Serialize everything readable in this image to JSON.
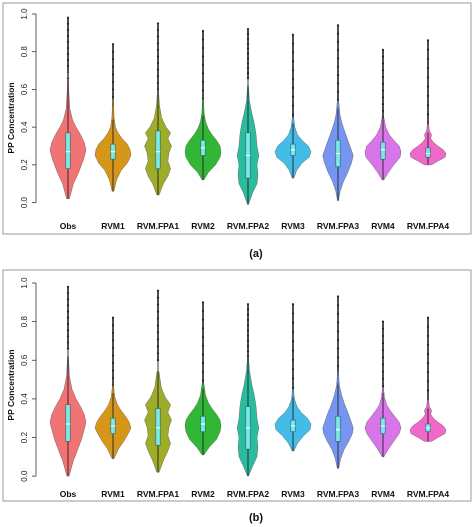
{
  "chart_data": [
    {
      "type": "violin",
      "caption": "(a)",
      "ylabel": "PP Concentration",
      "xlabel": "",
      "ylim": [
        -0.05,
        1.0
      ],
      "yticks": [
        0.0,
        0.2,
        0.4,
        0.6,
        0.8,
        1.0
      ],
      "ytick_labels": [
        "0.0",
        "0.2",
        "0.4",
        "0.6",
        "0.8",
        "1.0"
      ],
      "grid": false,
      "categories": [
        "Obs",
        "RVM1",
        "RVM.FPA1",
        "RVM2",
        "RVM.FPA2",
        "RVM3",
        "RVM.FPA3",
        "RVM4",
        "RVM.FPA4"
      ],
      "colors": [
        "#f06c6c",
        "#d4900e",
        "#9aa81e",
        "#26b32a",
        "#1fb89a",
        "#3ab8e6",
        "#6f8ff0",
        "#d56ee8",
        "#f060c8"
      ],
      "violins": [
        {
          "min": 0.02,
          "q1": 0.18,
          "median": 0.27,
          "q3": 0.37,
          "upper_whisker": 0.66,
          "outlier_max": 0.98,
          "density": [
            [
              0.02,
              0.08
            ],
            [
              0.1,
              0.3
            ],
            [
              0.15,
              0.55
            ],
            [
              0.2,
              0.75
            ],
            [
              0.24,
              0.9
            ],
            [
              0.28,
              1.0
            ],
            [
              0.32,
              0.9
            ],
            [
              0.36,
              0.7
            ],
            [
              0.4,
              0.45
            ],
            [
              0.44,
              0.25
            ],
            [
              0.5,
              0.1
            ],
            [
              0.6,
              0.04
            ],
            [
              0.7,
              0.02
            ]
          ]
        },
        {
          "min": 0.06,
          "q1": 0.23,
          "median": 0.27,
          "q3": 0.31,
          "upper_whisker": 0.44,
          "outlier_max": 0.84,
          "density": [
            [
              0.06,
              0.05
            ],
            [
              0.12,
              0.2
            ],
            [
              0.17,
              0.45
            ],
            [
              0.21,
              0.8
            ],
            [
              0.25,
              1.0
            ],
            [
              0.28,
              0.95
            ],
            [
              0.31,
              0.8
            ],
            [
              0.34,
              0.5
            ],
            [
              0.37,
              0.28
            ],
            [
              0.4,
              0.14
            ],
            [
              0.45,
              0.06
            ],
            [
              0.55,
              0.02
            ]
          ]
        },
        {
          "min": 0.04,
          "q1": 0.18,
          "median": 0.27,
          "q3": 0.38,
          "upper_whisker": 0.6,
          "outlier_max": 0.95,
          "density": [
            [
              0.04,
              0.06
            ],
            [
              0.1,
              0.3
            ],
            [
              0.14,
              0.55
            ],
            [
              0.18,
              0.7
            ],
            [
              0.22,
              0.55
            ],
            [
              0.26,
              0.6
            ],
            [
              0.3,
              0.75
            ],
            [
              0.34,
              0.55
            ],
            [
              0.37,
              0.7
            ],
            [
              0.4,
              0.45
            ],
            [
              0.45,
              0.2
            ],
            [
              0.52,
              0.08
            ],
            [
              0.6,
              0.03
            ]
          ]
        },
        {
          "min": 0.12,
          "q1": 0.25,
          "median": 0.29,
          "q3": 0.33,
          "upper_whisker": 0.46,
          "outlier_max": 0.91,
          "density": [
            [
              0.12,
              0.05
            ],
            [
              0.16,
              0.3
            ],
            [
              0.2,
              0.7
            ],
            [
              0.24,
              0.95
            ],
            [
              0.27,
              1.0
            ],
            [
              0.3,
              0.95
            ],
            [
              0.33,
              0.75
            ],
            [
              0.36,
              0.5
            ],
            [
              0.39,
              0.3
            ],
            [
              0.43,
              0.14
            ],
            [
              0.48,
              0.06
            ],
            [
              0.55,
              0.02
            ]
          ]
        },
        {
          "min": -0.01,
          "q1": 0.13,
          "median": 0.25,
          "q3": 0.37,
          "upper_whisker": 0.66,
          "outlier_max": 0.92,
          "density": [
            [
              -0.01,
              0.03
            ],
            [
              0.05,
              0.25
            ],
            [
              0.1,
              0.5
            ],
            [
              0.15,
              0.55
            ],
            [
              0.2,
              0.5
            ],
            [
              0.25,
              0.6
            ],
            [
              0.3,
              0.5
            ],
            [
              0.36,
              0.45
            ],
            [
              0.42,
              0.35
            ],
            [
              0.48,
              0.2
            ],
            [
              0.54,
              0.08
            ],
            [
              0.62,
              0.03
            ]
          ]
        },
        {
          "min": 0.13,
          "q1": 0.25,
          "median": 0.28,
          "q3": 0.31,
          "upper_whisker": 0.42,
          "outlier_max": 0.89,
          "density": [
            [
              0.13,
              0.05
            ],
            [
              0.17,
              0.2
            ],
            [
              0.21,
              0.5
            ],
            [
              0.24,
              0.9
            ],
            [
              0.27,
              1.0
            ],
            [
              0.3,
              0.85
            ],
            [
              0.33,
              0.5
            ],
            [
              0.36,
              0.25
            ],
            [
              0.4,
              0.1
            ],
            [
              0.45,
              0.04
            ]
          ]
        },
        {
          "min": 0.01,
          "q1": 0.19,
          "median": 0.26,
          "q3": 0.33,
          "upper_whisker": 0.5,
          "outlier_max": 0.94,
          "density": [
            [
              0.01,
              0.03
            ],
            [
              0.06,
              0.12
            ],
            [
              0.11,
              0.3
            ],
            [
              0.16,
              0.55
            ],
            [
              0.21,
              0.75
            ],
            [
              0.25,
              0.85
            ],
            [
              0.29,
              0.7
            ],
            [
              0.33,
              0.55
            ],
            [
              0.37,
              0.4
            ],
            [
              0.42,
              0.22
            ],
            [
              0.47,
              0.1
            ],
            [
              0.54,
              0.04
            ]
          ]
        },
        {
          "min": 0.12,
          "q1": 0.23,
          "median": 0.28,
          "q3": 0.32,
          "upper_whisker": 0.45,
          "outlier_max": 0.81,
          "density": [
            [
              0.12,
              0.05
            ],
            [
              0.16,
              0.3
            ],
            [
              0.2,
              0.6
            ],
            [
              0.24,
              0.95
            ],
            [
              0.27,
              1.0
            ],
            [
              0.3,
              0.9
            ],
            [
              0.33,
              0.6
            ],
            [
              0.36,
              0.35
            ],
            [
              0.4,
              0.15
            ],
            [
              0.45,
              0.05
            ]
          ]
        },
        {
          "min": 0.2,
          "q1": 0.24,
          "median": 0.26,
          "q3": 0.29,
          "upper_whisker": 0.37,
          "outlier_max": 0.86,
          "density": [
            [
              0.2,
              0.2
            ],
            [
              0.22,
              0.55
            ],
            [
              0.24,
              0.95
            ],
            [
              0.26,
              1.0
            ],
            [
              0.28,
              0.85
            ],
            [
              0.3,
              0.55
            ],
            [
              0.32,
              0.3
            ],
            [
              0.34,
              0.15
            ],
            [
              0.36,
              0.2
            ],
            [
              0.38,
              0.08
            ],
            [
              0.42,
              0.03
            ]
          ]
        }
      ]
    },
    {
      "type": "violin",
      "caption": "(b)",
      "ylabel": "PP Concentration",
      "xlabel": "",
      "ylim": [
        -0.02,
        1.0
      ],
      "yticks": [
        0.0,
        0.2,
        0.4,
        0.6,
        0.8,
        1.0
      ],
      "ytick_labels": [
        "0.0",
        "0.2",
        "0.4",
        "0.6",
        "0.8",
        "1.0"
      ],
      "grid": false,
      "categories": [
        "Obs",
        "RVM1",
        "RVM.FPA1",
        "RVM2",
        "RVM.FPA2",
        "RVM3",
        "RVM.FPA3",
        "RVM4",
        "RVM.FPA4"
      ],
      "colors": [
        "#f06c6c",
        "#d4900e",
        "#9aa81e",
        "#26b32a",
        "#1fb89a",
        "#3ab8e6",
        "#6f8ff0",
        "#d56ee8",
        "#f060c8"
      ],
      "violins": [
        {
          "min": 0.0,
          "q1": 0.18,
          "median": 0.27,
          "q3": 0.37,
          "upper_whisker": 0.66,
          "outlier_max": 0.98,
          "density": [
            [
              0.0,
              0.06
            ],
            [
              0.08,
              0.3
            ],
            [
              0.14,
              0.55
            ],
            [
              0.19,
              0.75
            ],
            [
              0.24,
              0.9
            ],
            [
              0.28,
              1.0
            ],
            [
              0.32,
              0.9
            ],
            [
              0.36,
              0.7
            ],
            [
              0.4,
              0.45
            ],
            [
              0.45,
              0.22
            ],
            [
              0.52,
              0.08
            ],
            [
              0.62,
              0.03
            ]
          ]
        },
        {
          "min": 0.09,
          "q1": 0.22,
          "median": 0.26,
          "q3": 0.3,
          "upper_whisker": 0.43,
          "outlier_max": 0.82,
          "density": [
            [
              0.09,
              0.05
            ],
            [
              0.14,
              0.3
            ],
            [
              0.18,
              0.6
            ],
            [
              0.22,
              0.85
            ],
            [
              0.25,
              1.0
            ],
            [
              0.28,
              0.9
            ],
            [
              0.31,
              0.7
            ],
            [
              0.34,
              0.45
            ],
            [
              0.37,
              0.25
            ],
            [
              0.41,
              0.1
            ],
            [
              0.47,
              0.03
            ]
          ]
        },
        {
          "min": 0.02,
          "q1": 0.16,
          "median": 0.25,
          "q3": 0.35,
          "upper_whisker": 0.6,
          "outlier_max": 0.96,
          "density": [
            [
              0.02,
              0.06
            ],
            [
              0.08,
              0.3
            ],
            [
              0.13,
              0.55
            ],
            [
              0.17,
              0.7
            ],
            [
              0.21,
              0.55
            ],
            [
              0.25,
              0.6
            ],
            [
              0.29,
              0.75
            ],
            [
              0.33,
              0.55
            ],
            [
              0.37,
              0.7
            ],
            [
              0.41,
              0.4
            ],
            [
              0.46,
              0.18
            ],
            [
              0.54,
              0.06
            ]
          ]
        },
        {
          "min": 0.11,
          "q1": 0.23,
          "median": 0.27,
          "q3": 0.31,
          "upper_whisker": 0.45,
          "outlier_max": 0.9,
          "density": [
            [
              0.11,
              0.05
            ],
            [
              0.15,
              0.35
            ],
            [
              0.19,
              0.75
            ],
            [
              0.23,
              0.95
            ],
            [
              0.26,
              1.0
            ],
            [
              0.29,
              0.95
            ],
            [
              0.32,
              0.75
            ],
            [
              0.35,
              0.5
            ],
            [
              0.38,
              0.3
            ],
            [
              0.42,
              0.14
            ],
            [
              0.48,
              0.05
            ]
          ]
        },
        {
          "min": 0.0,
          "q1": 0.14,
          "median": 0.25,
          "q3": 0.36,
          "upper_whisker": 0.62,
          "outlier_max": 0.89,
          "density": [
            [
              0.0,
              0.03
            ],
            [
              0.05,
              0.25
            ],
            [
              0.1,
              0.5
            ],
            [
              0.15,
              0.55
            ],
            [
              0.2,
              0.5
            ],
            [
              0.25,
              0.6
            ],
            [
              0.3,
              0.5
            ],
            [
              0.36,
              0.45
            ],
            [
              0.42,
              0.35
            ],
            [
              0.48,
              0.2
            ],
            [
              0.55,
              0.08
            ],
            [
              0.62,
              0.03
            ]
          ]
        },
        {
          "min": 0.13,
          "q1": 0.23,
          "median": 0.26,
          "q3": 0.29,
          "upper_whisker": 0.41,
          "outlier_max": 0.89,
          "density": [
            [
              0.13,
              0.05
            ],
            [
              0.17,
              0.25
            ],
            [
              0.21,
              0.6
            ],
            [
              0.24,
              0.95
            ],
            [
              0.27,
              1.0
            ],
            [
              0.3,
              0.8
            ],
            [
              0.33,
              0.45
            ],
            [
              0.36,
              0.22
            ],
            [
              0.4,
              0.08
            ],
            [
              0.45,
              0.03
            ]
          ]
        },
        {
          "min": 0.04,
          "q1": 0.18,
          "median": 0.24,
          "q3": 0.31,
          "upper_whisker": 0.48,
          "outlier_max": 0.93,
          "density": [
            [
              0.04,
              0.04
            ],
            [
              0.09,
              0.15
            ],
            [
              0.14,
              0.35
            ],
            [
              0.18,
              0.6
            ],
            [
              0.22,
              0.8
            ],
            [
              0.25,
              0.85
            ],
            [
              0.29,
              0.7
            ],
            [
              0.33,
              0.55
            ],
            [
              0.37,
              0.38
            ],
            [
              0.42,
              0.2
            ],
            [
              0.47,
              0.08
            ],
            [
              0.54,
              0.03
            ]
          ]
        },
        {
          "min": 0.1,
          "q1": 0.22,
          "median": 0.26,
          "q3": 0.3,
          "upper_whisker": 0.43,
          "outlier_max": 0.8,
          "density": [
            [
              0.1,
              0.05
            ],
            [
              0.14,
              0.3
            ],
            [
              0.18,
              0.6
            ],
            [
              0.22,
              0.9
            ],
            [
              0.25,
              1.0
            ],
            [
              0.28,
              0.9
            ],
            [
              0.31,
              0.65
            ],
            [
              0.34,
              0.4
            ],
            [
              0.37,
              0.2
            ],
            [
              0.41,
              0.08
            ],
            [
              0.46,
              0.03
            ]
          ]
        },
        {
          "min": 0.18,
          "q1": 0.23,
          "median": 0.25,
          "q3": 0.27,
          "upper_whisker": 0.35,
          "outlier_max": 0.82,
          "density": [
            [
              0.18,
              0.2
            ],
            [
              0.2,
              0.55
            ],
            [
              0.22,
              0.95
            ],
            [
              0.24,
              1.0
            ],
            [
              0.26,
              0.85
            ],
            [
              0.28,
              0.55
            ],
            [
              0.3,
              0.3
            ],
            [
              0.32,
              0.15
            ],
            [
              0.34,
              0.2
            ],
            [
              0.36,
              0.08
            ],
            [
              0.4,
              0.03
            ]
          ]
        }
      ]
    }
  ]
}
